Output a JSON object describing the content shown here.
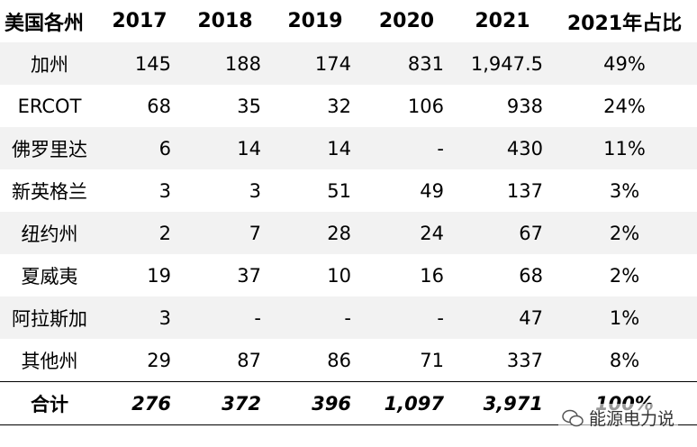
{
  "table": {
    "header": [
      "美国各州",
      "2017",
      "2018",
      "2019",
      "2020",
      "2021",
      "2021年占比"
    ],
    "rows": [
      [
        "加州",
        "145",
        "188",
        "174",
        "831",
        "1,947.5",
        "49%"
      ],
      [
        "ERCOT",
        "68",
        "35",
        "32",
        "106",
        "938",
        "24%"
      ],
      [
        "佛罗里达",
        "6",
        "14",
        "14",
        "-",
        "430",
        "11%"
      ],
      [
        "新英格兰",
        "3",
        "3",
        "51",
        "49",
        "137",
        "3%"
      ],
      [
        "纽约州",
        "2",
        "7",
        "28",
        "24",
        "67",
        "2%"
      ],
      [
        "夏威夷",
        "19",
        "37",
        "10",
        "16",
        "68",
        "2%"
      ],
      [
        "阿拉斯加",
        "3",
        "-",
        "-",
        "-",
        "47",
        "1%"
      ],
      [
        "其他州",
        "29",
        "87",
        "86",
        "71",
        "337",
        "8%"
      ]
    ],
    "total": [
      "合计",
      "276",
      "372",
      "396",
      "1,097",
      "3,971",
      "100%"
    ]
  },
  "watermark": "能源电力说"
}
